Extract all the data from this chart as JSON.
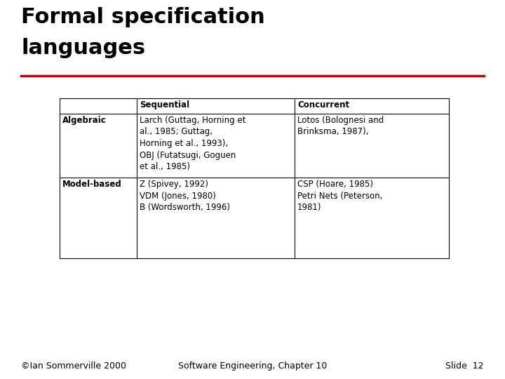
{
  "title_line1": "Formal specification",
  "title_line2": "languages",
  "title_fontsize": 22,
  "title_color": "#000000",
  "line_color": "#cc0000",
  "background_color": "#ffffff",
  "footer_left": "©Ian Sommerville 2000",
  "footer_center": "Software Engineering, Chapter 10",
  "footer_right": "Slide  12",
  "footer_fontsize": 9,
  "table": {
    "col_headers": [
      "",
      "Sequential",
      "Concurrent"
    ],
    "row_headers": [
      "Algebraic",
      "Model-based"
    ],
    "cells": [
      [
        "Larch (Guttag, Horning et\nal., 1985; Guttag,\nHorning et al., 1993),\nOBJ (Futatsugi, Goguen\net al., 1985)",
        "Lotos (Bolognesi and\nBrinksma, 1987),"
      ],
      [
        "Z (Spivey, 1992)\nVDM (Jones, 1980)\nB (Wordsworth, 1996)",
        "CSP (Hoare, 1985)\nPetri Nets (Peterson,\n1981)"
      ]
    ],
    "font_size": 8.5,
    "header_font_size": 8.5
  }
}
